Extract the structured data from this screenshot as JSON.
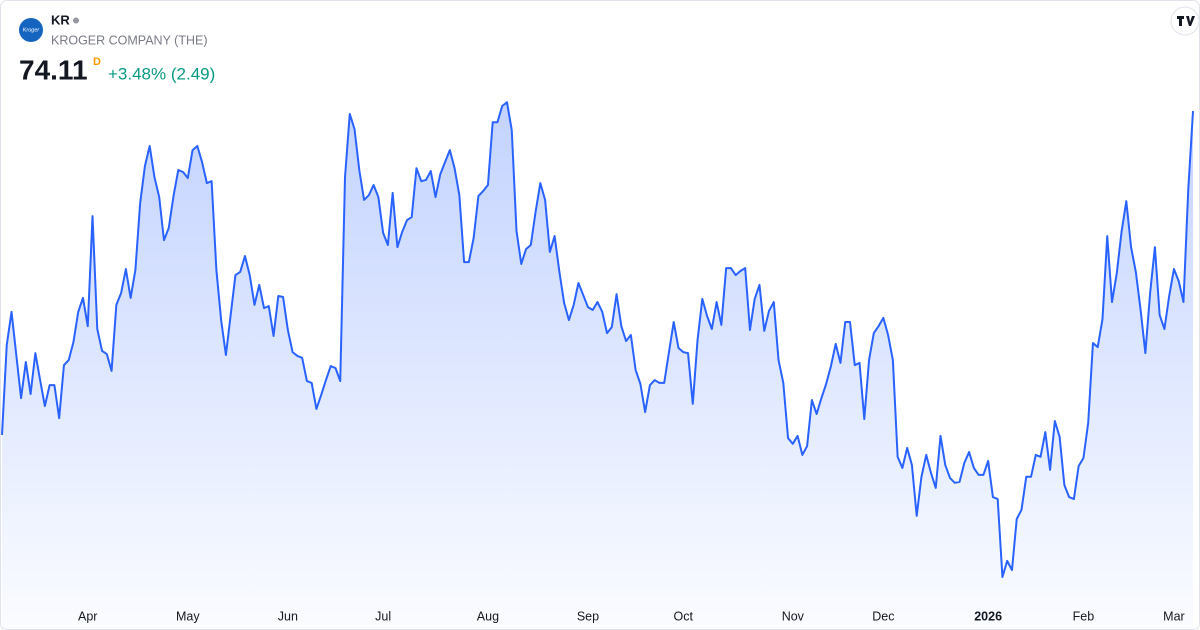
{
  "chart_data": {
    "type": "area",
    "symbol": "KR",
    "company": "KROGER COMPANY (THE)",
    "logo_text": "Kroger",
    "last_price": "74.11",
    "interval": "D",
    "change": "+3.48% (2.49)",
    "series": [
      {
        "name": "KR",
        "color": "#2962ff",
        "values": [
          63.9,
          66.74,
          67.78,
          66.42,
          65.06,
          66.2,
          65.19,
          66.48,
          65.63,
          64.81,
          65.47,
          65.47,
          64.43,
          66.1,
          66.26,
          66.83,
          67.78,
          68.22,
          67.33,
          70.8,
          67.24,
          66.55,
          66.45,
          65.92,
          68.0,
          68.37,
          69.13,
          68.22,
          69.1,
          71.21,
          72.38,
          73.01,
          72.03,
          71.4,
          70.04,
          70.42,
          71.43,
          72.25,
          72.19,
          72.0,
          72.88,
          73.01,
          72.5,
          71.84,
          71.9,
          69.1,
          67.52,
          66.42,
          67.68,
          68.94,
          69.04,
          69.54,
          68.94,
          68.0,
          68.63,
          67.9,
          67.96,
          67.02,
          68.28,
          68.25,
          67.21,
          66.51,
          66.39,
          66.33,
          65.6,
          65.54,
          64.72,
          65.16,
          65.63,
          66.07,
          66.01,
          65.6,
          72.03,
          74.02,
          73.54,
          72.25,
          71.31,
          71.46,
          71.78,
          71.4,
          70.27,
          69.89,
          71.53,
          69.82,
          70.3,
          70.67,
          70.77,
          72.31,
          71.9,
          71.94,
          72.22,
          71.4,
          72.12,
          72.5,
          72.88,
          72.31,
          71.46,
          69.35,
          69.35,
          70.11,
          71.43,
          71.59,
          71.78,
          73.76,
          73.76,
          74.27,
          74.39,
          73.51,
          70.33,
          69.29,
          69.76,
          69.89,
          70.93,
          71.84,
          71.31,
          69.67,
          70.17,
          69.04,
          68.06,
          67.52,
          68.0,
          68.69,
          68.31,
          67.93,
          67.84,
          68.09,
          67.78,
          67.11,
          67.3,
          68.34,
          67.33,
          66.86,
          67.05,
          65.95,
          65.51,
          64.62,
          65.47,
          65.63,
          65.54,
          65.54,
          66.51,
          67.46,
          66.64,
          66.51,
          66.48,
          64.88,
          66.89,
          68.19,
          67.65,
          67.24,
          68.09,
          67.37,
          69.16,
          69.16,
          68.94,
          69.07,
          69.16,
          67.21,
          68.19,
          68.63,
          67.18,
          67.81,
          68.09,
          66.26,
          65.54,
          63.8,
          63.62,
          63.87,
          63.27,
          63.55,
          65.0,
          64.56,
          65.06,
          65.51,
          66.07,
          66.77,
          66.17,
          67.46,
          67.46,
          66.1,
          66.17,
          64.4,
          66.26,
          67.11,
          67.33,
          67.59,
          67.05,
          66.26,
          63.21,
          62.86,
          63.49,
          62.95,
          61.35,
          62.58,
          63.27,
          62.7,
          62.23,
          63.87,
          62.95,
          62.54,
          62.39,
          62.42,
          63.02,
          63.36,
          62.86,
          62.64,
          62.64,
          63.08,
          61.94,
          61.88,
          59.42,
          59.93,
          59.64,
          61.25,
          61.54,
          62.58,
          62.58,
          63.27,
          63.21,
          63.99,
          62.8,
          64.34,
          63.84,
          62.32,
          61.94,
          61.88,
          62.92,
          63.17,
          64.28,
          66.8,
          66.67,
          67.55,
          70.17,
          68.09,
          69.0,
          70.3,
          71.27,
          69.82,
          69.04,
          67.84,
          66.48,
          68.37,
          69.82,
          67.68,
          67.24,
          68.28,
          69.13,
          68.75,
          68.09,
          71.62,
          74.11
        ]
      }
    ],
    "xlim": [
      0,
      250
    ],
    "xticks": [
      {
        "value": 18,
        "label": "Apr"
      },
      {
        "value": 39,
        "label": "May"
      },
      {
        "value": 60,
        "label": "Jun"
      },
      {
        "value": 80,
        "label": "Jul"
      },
      {
        "value": 102,
        "label": "Aug"
      },
      {
        "value": 123,
        "label": "Sep"
      },
      {
        "value": 143,
        "label": "Oct"
      },
      {
        "value": 166,
        "label": "Nov"
      },
      {
        "value": 185,
        "label": "Dec"
      },
      {
        "value": 207,
        "label": "2026"
      },
      {
        "value": 227,
        "label": "Feb"
      },
      {
        "value": 246,
        "label": "Mar"
      }
    ],
    "ylim": [
      57.75,
      74.46
    ]
  }
}
